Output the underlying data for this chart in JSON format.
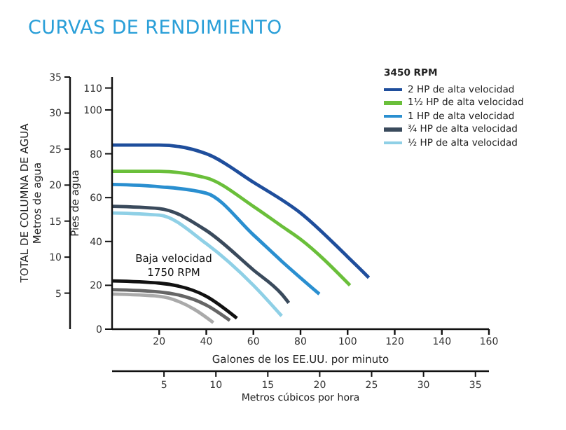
{
  "chart_data": {
    "type": "line",
    "title": "CURVAS DE RENDIMIENTO",
    "xlabel": "Galones de los EE.UU. por minuto",
    "x2label": "Metros cúbicos por hora",
    "ylabel": "Pies de agua",
    "y2label": "TOTAL DE COLUMNA DE AGUA\nMetros de agua",
    "legend_title": "3450 RPM",
    "legend": "top right",
    "xlim": [
      0,
      160
    ],
    "xticks": [
      20,
      40,
      60,
      80,
      100,
      120,
      140,
      160
    ],
    "x2lim": [
      0,
      36.3
    ],
    "x2ticks": [
      5,
      10,
      15,
      20,
      25,
      30,
      35
    ],
    "ylim": [
      0,
      115
    ],
    "yticks": [
      0,
      20,
      40,
      60,
      80,
      100,
      110
    ],
    "y2lim": [
      0,
      35
    ],
    "y2ticks": [
      5,
      10,
      15,
      20,
      25,
      30,
      35
    ],
    "annotations": [
      "Baja velocidad\n1750 RPM"
    ],
    "series": [
      {
        "name": "2 HP de alta velocidad",
        "color": "#1f4e9c",
        "x": [
          0,
          20,
          40,
          60,
          80,
          100,
          109
        ],
        "values": [
          84,
          84,
          80,
          67,
          53,
          33,
          23.5
        ]
      },
      {
        "name": "1½ HP de alta velocidad",
        "color": "#6abf3a",
        "x": [
          0,
          20,
          40,
          60,
          72,
          80,
          101
        ],
        "values": [
          72,
          72,
          69,
          56,
          47,
          41,
          20
        ]
      },
      {
        "name": "1 HP de alta velocidad",
        "color": "#2a8fd0",
        "x": [
          0,
          20,
          40,
          60,
          72,
          88
        ],
        "values": [
          66,
          65,
          62,
          43,
          31,
          16
        ]
      },
      {
        "name": "¾ HP de alta velocidad",
        "color": "#3a4a5c",
        "x": [
          0,
          20,
          40,
          60,
          72,
          75
        ],
        "values": [
          56,
          55,
          45,
          27,
          16,
          12
        ]
      },
      {
        "name": "½ HP de alta velocidad",
        "color": "#8fd0e6",
        "x": [
          0,
          20,
          40,
          60,
          72
        ],
        "values": [
          53,
          52,
          39,
          20,
          6
        ]
      },
      {
        "color": "#111111",
        "x": [
          0,
          20,
          40,
          53
        ],
        "values": [
          22,
          21,
          15,
          5
        ]
      },
      {
        "color": "#666666",
        "x": [
          0,
          20,
          40,
          50
        ],
        "values": [
          18,
          17,
          11,
          4
        ]
      },
      {
        "color": "#aaaaaa",
        "x": [
          0,
          20,
          35,
          43
        ],
        "values": [
          16,
          15,
          9,
          3
        ]
      }
    ]
  }
}
